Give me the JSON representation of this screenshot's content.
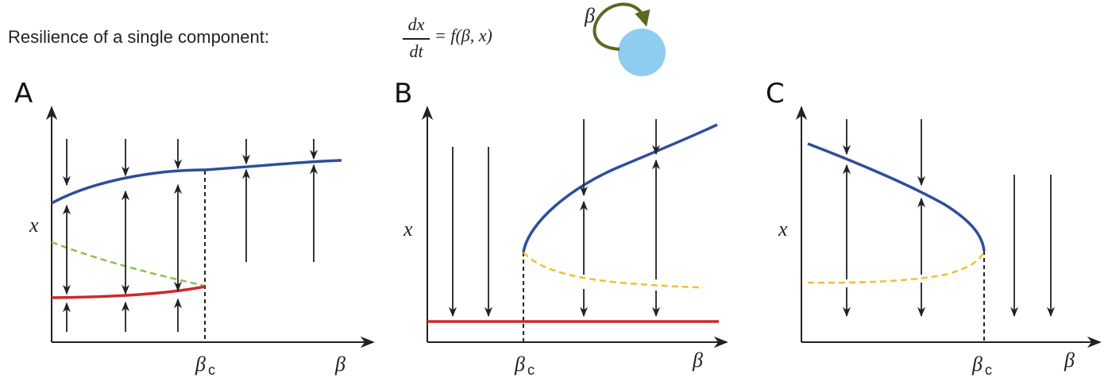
{
  "header": {
    "title": "Resilience of a single component:",
    "eq_num": "dx",
    "eq_den": "dt",
    "eq_rhs": "= f(β, x)",
    "loop_label": "β"
  },
  "panels": [
    {
      "letter": "A",
      "ylabel": "x",
      "xlabel": "β",
      "crit_label": "β",
      "crit_sub": "c"
    },
    {
      "letter": "B",
      "ylabel": "x",
      "xlabel": "β",
      "crit_label": "β",
      "crit_sub": "c"
    },
    {
      "letter": "C",
      "ylabel": "x",
      "xlabel": "β",
      "crit_label": "β",
      "crit_sub": "c"
    }
  ],
  "colors": {
    "stable_high": "#2f4d9a",
    "stable_low": "#cc2a2a",
    "unstable_a": "#8cc04f",
    "unstable_bc": "#f0c030",
    "node": "#8fcdf0",
    "loop": "#5a6a20",
    "axis": "#222222"
  }
}
